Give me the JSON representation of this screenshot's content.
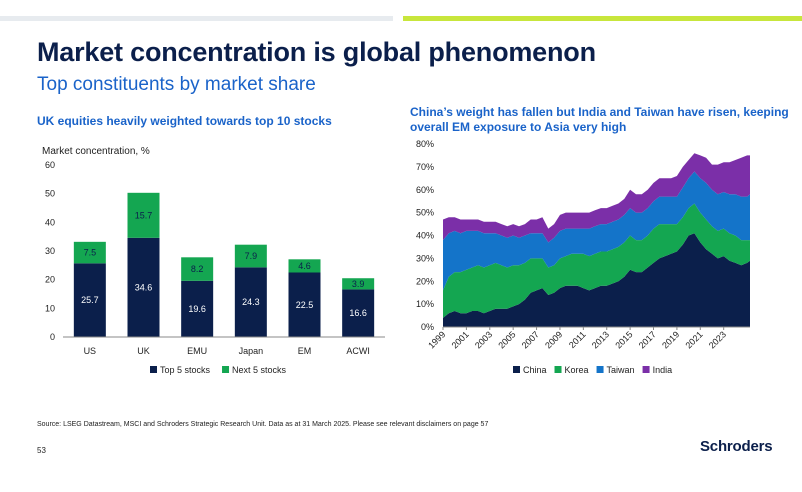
{
  "title": "Market concentration is global phenomenon",
  "subtitle": "Top constituents by market share",
  "source": "Source: LSEG Datastream, MSCI and Schroders Strategic Research Unit. Data as at 31 March 2025. Please see relevant disclaimers on page 57",
  "page_number": "53",
  "logo_text": "Schroders",
  "colors": {
    "navy": "#0b1f4b",
    "green": "#14a651",
    "blue": "#1474c9",
    "purple": "#7b2fa8",
    "accent": "#c8e63c"
  },
  "chart_data": [
    {
      "type": "bar",
      "stacked": true,
      "title": "UK equities heavily weighted towards top 10 stocks",
      "ylabel": "Market concentration, %",
      "ylim": [
        0,
        60
      ],
      "yticks": [
        "0",
        "10",
        "20",
        "30",
        "40",
        "50",
        "60"
      ],
      "categories": [
        "US",
        "UK",
        "EMU",
        "Japan",
        "EM",
        "ACWI"
      ],
      "series": [
        {
          "name": "Top 5 stocks",
          "color": "#0b1f4b",
          "values": [
            25.7,
            34.6,
            19.6,
            24.3,
            22.5,
            16.6
          ],
          "labels": [
            "25.7",
            "34.6",
            "19.6",
            "24.3",
            "22.5",
            "16.6"
          ]
        },
        {
          "name": "Next 5 stocks",
          "color": "#14a651",
          "values": [
            7.5,
            15.7,
            8.2,
            7.9,
            4.6,
            3.9
          ],
          "labels": [
            "7.5",
            "15.7",
            "8.2",
            "7.9",
            "4.6",
            "3.9"
          ]
        }
      ],
      "legend": "bottom",
      "grid": false
    },
    {
      "type": "area",
      "stacked": true,
      "title": "China’s weight has fallen but India and Taiwan have risen, keeping overall EM exposure to Asia very high",
      "ylim": [
        0,
        80
      ],
      "yticks": [
        "0%",
        "10%",
        "20%",
        "30%",
        "40%",
        "50%",
        "60%",
        "70%",
        "80%"
      ],
      "xlim": [
        1999,
        2025.25
      ],
      "xticks": [
        "1999",
        "2001",
        "2003",
        "2005",
        "2007",
        "2009",
        "2011",
        "2013",
        "2015",
        "2017",
        "2019",
        "2021",
        "2023"
      ],
      "x": [
        1999,
        1999.5,
        2000,
        2000.5,
        2001,
        2001.5,
        2002,
        2002.5,
        2003,
        2003.5,
        2004,
        2004.5,
        2005,
        2005.5,
        2006,
        2006.5,
        2007,
        2007.5,
        2008,
        2008.5,
        2009,
        2009.5,
        2010,
        2010.5,
        2011,
        2011.5,
        2012,
        2012.5,
        2013,
        2013.5,
        2014,
        2014.5,
        2015,
        2015.5,
        2016,
        2016.5,
        2017,
        2017.5,
        2018,
        2018.5,
        2019,
        2019.5,
        2020,
        2020.5,
        2021,
        2021.5,
        2022,
        2022.5,
        2023,
        2023.5,
        2024,
        2024.5,
        2025,
        2025.25
      ],
      "series": [
        {
          "name": "China",
          "color": "#0b1f4b",
          "values": [
            4,
            6,
            7,
            6,
            6,
            7,
            7,
            6,
            7,
            8,
            8,
            8,
            9,
            10,
            12,
            15,
            16,
            17,
            14,
            15,
            17,
            18,
            18,
            18,
            17,
            16,
            17,
            18,
            18,
            19,
            20,
            22,
            25,
            24,
            24,
            26,
            28,
            30,
            31,
            32,
            33,
            36,
            40,
            41,
            37,
            34,
            32,
            30,
            31,
            29,
            28,
            27,
            28,
            29
          ]
        },
        {
          "name": "Korea",
          "color": "#14a651",
          "values": [
            12,
            16,
            17,
            18,
            19,
            19,
            20,
            20,
            20,
            20,
            19,
            18,
            18,
            17,
            16,
            15,
            14,
            13,
            12,
            12,
            13,
            13,
            14,
            14,
            15,
            15,
            15,
            15,
            15,
            15,
            15,
            15,
            15,
            14,
            14,
            14,
            15,
            15,
            14,
            13,
            12,
            12,
            12,
            13,
            13,
            13,
            12,
            12,
            12,
            12,
            12,
            11,
            10,
            9
          ]
        },
        {
          "name": "Taiwan",
          "color": "#1474c9",
          "values": [
            22,
            19,
            18,
            17,
            17,
            16,
            15,
            15,
            14,
            13,
            13,
            13,
            13,
            12,
            12,
            11,
            11,
            11,
            11,
            12,
            12,
            12,
            11,
            11,
            11,
            12,
            12,
            12,
            12,
            12,
            12,
            12,
            12,
            12,
            12,
            12,
            12,
            12,
            12,
            12,
            12,
            13,
            13,
            14,
            15,
            16,
            16,
            16,
            16,
            17,
            18,
            19,
            19,
            20
          ]
        },
        {
          "name": "India",
          "color": "#7b2fa8",
          "values": [
            9,
            7,
            6,
            6,
            5,
            5,
            5,
            5,
            5,
            5,
            5,
            5,
            5,
            5,
            5,
            6,
            6,
            7,
            6,
            6,
            7,
            7,
            7,
            7,
            7,
            7,
            7,
            7,
            7,
            7,
            7,
            7,
            8,
            8,
            8,
            8,
            8,
            8,
            8,
            8,
            9,
            9,
            8,
            8,
            10,
            11,
            11,
            13,
            13,
            14,
            15,
            17,
            18,
            17
          ]
        }
      ],
      "legend": "bottom",
      "grid": false
    }
  ]
}
